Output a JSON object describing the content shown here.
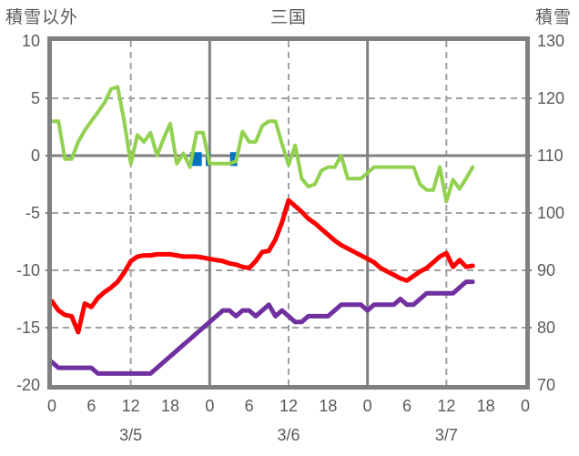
{
  "titles": {
    "left_axis": "積雪以外",
    "chart": "三国",
    "right_axis": "積雪"
  },
  "colors": {
    "text": "#595959",
    "border": "#808080",
    "grid_solid": "#808080",
    "grid_dashed": "#A0A0A0",
    "green": "#92D050",
    "red": "#FF0000",
    "purple": "#7030A0",
    "blue": "#0070C0"
  },
  "chart_data": {
    "type": "line",
    "title": "三国",
    "left_axis": {
      "title": "積雪以外",
      "range": [
        -20,
        10
      ],
      "ticks": [
        10,
        5,
        0,
        -5,
        -10,
        -15,
        -20
      ],
      "tick_labels": [
        "10",
        "5",
        "0",
        "-5",
        "-10",
        "-15",
        "-20"
      ]
    },
    "right_axis": {
      "title": "積雪",
      "range": [
        70,
        130
      ],
      "ticks": [
        130,
        120,
        110,
        100,
        90,
        80,
        70
      ],
      "tick_labels": [
        "130",
        "120",
        "110",
        "100",
        "90",
        "80",
        "70"
      ]
    },
    "x_axis": {
      "unit": "hour",
      "range": [
        0,
        72
      ],
      "tick_hours": [
        0,
        6,
        12,
        18,
        24,
        30,
        36,
        42,
        48,
        54,
        60,
        66,
        72
      ],
      "tick_labels": [
        "0",
        "6",
        "12",
        "18",
        "0",
        "6",
        "12",
        "18",
        "0",
        "6",
        "12",
        "18",
        "0"
      ],
      "date_labels": [
        {
          "label": "3/5",
          "hour": 12
        },
        {
          "label": "3/6",
          "hour": 36
        },
        {
          "label": "3/7",
          "hour": 60
        }
      ]
    },
    "gridlines": {
      "horizontal_solid": [
        0
      ],
      "horizontal_dashed": [
        5,
        -5,
        -10,
        -15
      ],
      "vertical_solid": [
        24,
        48
      ],
      "vertical_dashed": [
        12,
        36,
        60
      ],
      "left_tick_marks": [
        5,
        0,
        -5,
        -10,
        -15
      ],
      "right_tick_marks": [
        120,
        110,
        100,
        90,
        80
      ]
    },
    "series": [
      {
        "name": "green",
        "axis": "left",
        "color_key": "green",
        "stroke_width": 4,
        "x_start": 0,
        "x_step": 1,
        "values": [
          3.0,
          3.0,
          -0.3,
          -0.3,
          1.2,
          2.2,
          3.0,
          3.8,
          4.6,
          5.8,
          6.0,
          3.0,
          -0.7,
          1.8,
          1.2,
          2.0,
          0.0,
          1.5,
          2.8,
          -0.7,
          0.2,
          -1.0,
          2.0,
          2.0,
          -0.7,
          -0.7,
          -0.7,
          -0.7,
          -0.5,
          2.1,
          1.2,
          1.2,
          2.6,
          3.0,
          3.0,
          1.0,
          -0.8,
          0.9,
          -2.0,
          -2.7,
          -2.5,
          -1.3,
          -1.0,
          -1.0,
          0.0,
          -2.0,
          -2.0,
          -2.0,
          -1.5,
          -1.0,
          -1.0,
          -1.0,
          -1.0,
          -1.0,
          -1.0,
          -1.0,
          -2.5,
          -3.0,
          -3.0,
          -1.0,
          -4.0,
          -2.1,
          -2.9,
          -2.0,
          -1.0
        ]
      },
      {
        "name": "red",
        "axis": "left",
        "color_key": "red",
        "stroke_width": 5,
        "x_start": 0,
        "x_step": 1,
        "values": [
          -12.7,
          -13.5,
          -13.9,
          -14.0,
          -15.4,
          -12.9,
          -13.2,
          -12.4,
          -11.9,
          -11.5,
          -11.0,
          -10.2,
          -9.2,
          -8.8,
          -8.7,
          -8.7,
          -8.6,
          -8.6,
          -8.6,
          -8.7,
          -8.8,
          -8.8,
          -8.8,
          -8.9,
          -9.0,
          -9.1,
          -9.2,
          -9.4,
          -9.5,
          -9.7,
          -9.8,
          -9.2,
          -8.4,
          -8.3,
          -7.3,
          -5.8,
          -3.9,
          -4.4,
          -4.9,
          -5.5,
          -5.9,
          -6.4,
          -6.9,
          -7.4,
          -7.8,
          -8.1,
          -8.4,
          -8.7,
          -9.0,
          -9.3,
          -9.8,
          -10.1,
          -10.4,
          -10.7,
          -10.9,
          -10.5,
          -10.1,
          -9.8,
          -9.3,
          -8.8,
          -8.5,
          -9.7,
          -9.1,
          -9.7,
          -9.6
        ]
      },
      {
        "name": "purple",
        "axis": "right",
        "color_key": "purple",
        "stroke_width": 5,
        "x_start": 0,
        "x_step": 1,
        "values": [
          74,
          73,
          73,
          73,
          73,
          73,
          73,
          72,
          72,
          72,
          72,
          72,
          72,
          72,
          72,
          72,
          73,
          74,
          75,
          76,
          77,
          78,
          79,
          80,
          81,
          82,
          83,
          83,
          82,
          83,
          83,
          82,
          83,
          84,
          82,
          83,
          82,
          81,
          81,
          82,
          82,
          82,
          82,
          83,
          84,
          84,
          84,
          84,
          83,
          84,
          84,
          84,
          84,
          85,
          84,
          84,
          85,
          86,
          86,
          86,
          86,
          86,
          87,
          88,
          88
        ]
      }
    ],
    "blue_bars": {
      "name": "blue",
      "axis": "left",
      "color_key": "blue",
      "top_value": 0.3,
      "bottom_value": -0.9,
      "segments": [
        {
          "from": 21.0,
          "to": 22.8
        },
        {
          "from": 23.4,
          "to": 24.1
        },
        {
          "from": 27.1,
          "to": 28.2
        }
      ]
    }
  }
}
